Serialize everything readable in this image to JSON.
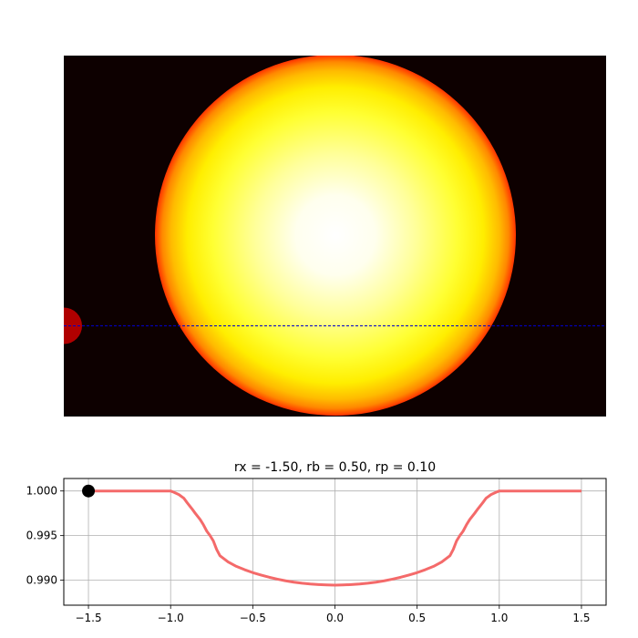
{
  "figure": {
    "transit_image": {
      "type": "image",
      "background_color": "#0d0000",
      "star": {
        "center_x": 0.0,
        "center_y": 0.0,
        "radius": 1.0,
        "limb_darkened": true
      },
      "planet": {
        "center_x": -1.5,
        "center_y": -0.5,
        "radius": 0.1,
        "color": "#b00000"
      },
      "transit_path": {
        "y": -0.5,
        "color": "#0000cc",
        "style": "dashed"
      }
    },
    "chart_data": {
      "type": "line",
      "title": "rx = -1.50, rb = 0.50, rp = 0.10",
      "xlabel": "",
      "ylabel": "",
      "xlim": [
        -1.65,
        1.65
      ],
      "ylim": [
        0.9872,
        1.0014
      ],
      "x_ticks": [
        -1.5,
        -1.0,
        -0.5,
        0.0,
        0.5,
        1.0,
        1.5
      ],
      "x_tick_labels": [
        "−1.5",
        "−1.0",
        "−0.5",
        "0.0",
        "0.5",
        "1.0",
        "1.5"
      ],
      "y_ticks": [
        0.99,
        0.995,
        1.0
      ],
      "y_tick_labels": [
        "0.990",
        "0.995",
        "1.000"
      ],
      "grid": true,
      "series": [
        {
          "color": "#f46a6a",
          "x": [
            -1.5,
            -1.2,
            -1.0,
            -0.98,
            -0.95,
            -0.92,
            -0.9,
            -0.87,
            -0.85,
            -0.82,
            -0.8,
            -0.78,
            -0.76,
            -0.74,
            -0.72,
            -0.7,
            -0.65,
            -0.6,
            -0.55,
            -0.5,
            -0.45,
            -0.4,
            -0.35,
            -0.3,
            -0.25,
            -0.2,
            -0.15,
            -0.1,
            -0.05,
            0.0,
            0.05,
            0.1,
            0.15,
            0.2,
            0.25,
            0.3,
            0.35,
            0.4,
            0.45,
            0.5,
            0.55,
            0.6,
            0.65,
            0.7,
            0.72,
            0.74,
            0.76,
            0.78,
            0.8,
            0.82,
            0.85,
            0.87,
            0.9,
            0.92,
            0.95,
            0.98,
            1.0,
            1.2,
            1.5
          ],
          "y": [
            1.0,
            1.0,
            1.0,
            0.99985,
            0.9996,
            0.9992,
            0.9987,
            0.998,
            0.9975,
            0.9968,
            0.9962,
            0.9955,
            0.995,
            0.9944,
            0.99345,
            0.99275,
            0.99205,
            0.99155,
            0.99118,
            0.99085,
            0.99058,
            0.99033,
            0.99012,
            0.98993,
            0.98978,
            0.98966,
            0.98957,
            0.98951,
            0.98947,
            0.98945,
            0.98947,
            0.98951,
            0.98957,
            0.98966,
            0.98978,
            0.98993,
            0.99012,
            0.99033,
            0.99058,
            0.99085,
            0.99118,
            0.99155,
            0.99205,
            0.99275,
            0.99345,
            0.9944,
            0.995,
            0.9955,
            0.9962,
            0.9968,
            0.9975,
            0.998,
            0.9987,
            0.9992,
            0.9996,
            0.99985,
            1.0,
            1.0,
            1.0
          ]
        }
      ],
      "marker": {
        "x": -1.5,
        "y": 1.0,
        "color": "#000000"
      }
    }
  }
}
